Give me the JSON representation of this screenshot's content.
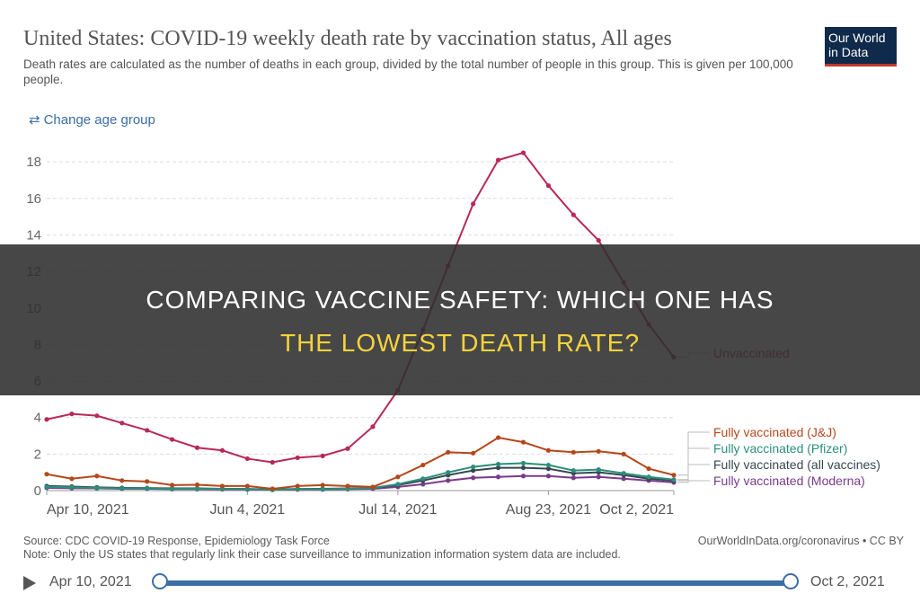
{
  "header": {
    "title": "United States: COVID-19 weekly death rate by vaccination status, All ages",
    "subtitle": "Death rates are calculated as the number of deaths in each group, divided by the total number of people in this group. This is given per 100,000 people.",
    "logo_line1": "Our World",
    "logo_line2": "in Data",
    "change_age_label": "Change age group",
    "change_age_icon": "swap-arrows-icon"
  },
  "banner": {
    "line1": "COMPARING VACCINE SAFETY: WHICH ONE HAS",
    "line2": "THE LOWEST DEATH RATE?",
    "line1_color": "#ffffff",
    "line2_color": "#f5d33a"
  },
  "footer": {
    "source": "Source: CDC COVID-19 Response, Epidemiology Task Force",
    "note": "Note: Only the US states that regularly link their case surveillance to immunization information system data are included.",
    "credit": "OurWorldInData.org/coronavirus • CC BY"
  },
  "timeline": {
    "start_label": "Apr 10, 2021",
    "end_label": "Oct 2, 2021",
    "start_fraction": 0,
    "end_fraction": 1
  },
  "chart_data": {
    "type": "line",
    "ylim": [
      0,
      18.5
    ],
    "yticks": [
      0,
      2,
      4,
      6,
      8,
      10,
      12,
      14,
      16,
      18
    ],
    "grid": true,
    "x_tick_labels": [
      {
        "index": 0,
        "label": "Apr 10, 2021"
      },
      {
        "index": 8,
        "label": "Jun 4, 2021"
      },
      {
        "index": 14,
        "label": "Jul 14, 2021"
      },
      {
        "index": 20,
        "label": "Aug 23, 2021"
      },
      {
        "index": 25,
        "label": "Oct 2, 2021"
      }
    ],
    "n_points": 26,
    "series": [
      {
        "name": "Unvaccinated",
        "color": "#b8285a",
        "values": [
          3.9,
          4.2,
          4.1,
          3.7,
          3.3,
          2.8,
          2.35,
          2.2,
          1.75,
          1.55,
          1.8,
          1.9,
          2.3,
          3.5,
          5.5,
          8.8,
          12.3,
          15.7,
          18.1,
          18.5,
          16.7,
          15.1,
          13.7,
          11.4,
          9.1,
          7.3
        ]
      },
      {
        "name": "Fully vaccinated (J&J)",
        "color": "#b5471b",
        "values": [
          0.9,
          0.65,
          0.8,
          0.55,
          0.5,
          0.3,
          0.32,
          0.25,
          0.25,
          0.1,
          0.25,
          0.3,
          0.25,
          0.2,
          0.75,
          1.4,
          2.1,
          2.05,
          2.9,
          2.65,
          2.2,
          2.1,
          2.15,
          2.0,
          1.2,
          0.85
        ]
      },
      {
        "name": "Fully vaccinated (Pfizer)",
        "color": "#2a8f7a",
        "values": [
          0.2,
          0.18,
          0.15,
          0.12,
          0.12,
          0.1,
          0.1,
          0.1,
          0.08,
          0.05,
          0.08,
          0.08,
          0.1,
          0.15,
          0.35,
          0.65,
          1.0,
          1.3,
          1.45,
          1.5,
          1.4,
          1.1,
          1.15,
          0.95,
          0.75,
          0.6
        ]
      },
      {
        "name": "Fully vaccinated (all vaccines)",
        "color": "#37474f",
        "values": [
          0.25,
          0.22,
          0.18,
          0.15,
          0.14,
          0.12,
          0.12,
          0.1,
          0.09,
          0.06,
          0.09,
          0.1,
          0.12,
          0.15,
          0.3,
          0.55,
          0.85,
          1.1,
          1.25,
          1.25,
          1.2,
          0.95,
          1.0,
          0.85,
          0.65,
          0.55
        ]
      },
      {
        "name": "Fully vaccinated (Moderna)",
        "color": "#7a3a8c",
        "values": [
          0.15,
          0.13,
          0.12,
          0.1,
          0.1,
          0.08,
          0.08,
          0.07,
          0.06,
          0.04,
          0.06,
          0.06,
          0.08,
          0.1,
          0.2,
          0.35,
          0.55,
          0.7,
          0.75,
          0.8,
          0.8,
          0.7,
          0.75,
          0.65,
          0.55,
          0.45
        ]
      }
    ]
  }
}
